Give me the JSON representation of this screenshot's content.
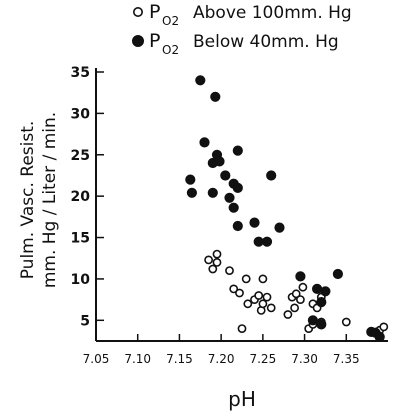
{
  "chart_data": {
    "type": "scatter",
    "xlabel": "pH",
    "ylabel_line1": "Pulm. Vasc. Resist.",
    "ylabel_line2": "mm. Hg / Liter / min.",
    "xlim": [
      7.05,
      7.4
    ],
    "ylim": [
      2.5,
      35
    ],
    "x_ticks": [
      7.05,
      7.1,
      7.15,
      7.2,
      7.25,
      7.3,
      7.35
    ],
    "x_tick_labels": [
      "7.05",
      "7.10",
      "7.15",
      "7.20",
      "7.25",
      "7.30",
      "7.35"
    ],
    "y_ticks": [
      5,
      10,
      15,
      20,
      25,
      30,
      35
    ],
    "y_tick_labels": [
      "5",
      "10",
      "15",
      "20",
      "25",
      "30",
      "35"
    ],
    "grid": false,
    "legend_position": "top",
    "series": [
      {
        "legend_prefix": "P",
        "legend_sub": "O2",
        "legend_rest": "Above 100mm. Hg",
        "marker": "open-circle",
        "color": "#111111",
        "points": [
          [
            7.185,
            12.3
          ],
          [
            7.19,
            11.2
          ],
          [
            7.195,
            13.0
          ],
          [
            7.195,
            12.0
          ],
          [
            7.21,
            11.0
          ],
          [
            7.215,
            8.8
          ],
          [
            7.222,
            8.3
          ],
          [
            7.225,
            4.0
          ],
          [
            7.23,
            10.0
          ],
          [
            7.232,
            7.0
          ],
          [
            7.24,
            7.5
          ],
          [
            7.245,
            8.0
          ],
          [
            7.248,
            6.2
          ],
          [
            7.25,
            7.0
          ],
          [
            7.25,
            10.0
          ],
          [
            7.255,
            7.8
          ],
          [
            7.26,
            6.5
          ],
          [
            7.28,
            5.7
          ],
          [
            7.285,
            7.8
          ],
          [
            7.288,
            6.5
          ],
          [
            7.29,
            8.2
          ],
          [
            7.295,
            7.5
          ],
          [
            7.298,
            9.0
          ],
          [
            7.305,
            4.0
          ],
          [
            7.31,
            4.5
          ],
          [
            7.31,
            7.0
          ],
          [
            7.315,
            6.5
          ],
          [
            7.32,
            4.8
          ],
          [
            7.32,
            7.8
          ],
          [
            7.35,
            4.8
          ],
          [
            7.39,
            3.8
          ],
          [
            7.395,
            4.2
          ]
        ]
      },
      {
        "legend_prefix": "P",
        "legend_sub": "O2",
        "legend_rest": "Below 40mm. Hg",
        "marker": "filled-circle",
        "color": "#111111",
        "points": [
          [
            7.163,
            22.0
          ],
          [
            7.165,
            20.4
          ],
          [
            7.175,
            34.0
          ],
          [
            7.18,
            26.5
          ],
          [
            7.19,
            24.0
          ],
          [
            7.19,
            20.4
          ],
          [
            7.193,
            32.0
          ],
          [
            7.195,
            25.0
          ],
          [
            7.198,
            24.2
          ],
          [
            7.205,
            22.5
          ],
          [
            7.21,
            19.8
          ],
          [
            7.215,
            21.5
          ],
          [
            7.215,
            18.6
          ],
          [
            7.22,
            25.5
          ],
          [
            7.22,
            21.0
          ],
          [
            7.22,
            16.4
          ],
          [
            7.24,
            16.8
          ],
          [
            7.245,
            14.5
          ],
          [
            7.255,
            14.5
          ],
          [
            7.26,
            22.5
          ],
          [
            7.27,
            16.2
          ],
          [
            7.295,
            10.3
          ],
          [
            7.31,
            5.0
          ],
          [
            7.315,
            8.8
          ],
          [
            7.32,
            7.2
          ],
          [
            7.32,
            4.5
          ],
          [
            7.325,
            8.5
          ],
          [
            7.34,
            10.6
          ],
          [
            7.38,
            3.6
          ],
          [
            7.385,
            3.5
          ],
          [
            7.39,
            3.0
          ]
        ]
      }
    ]
  }
}
